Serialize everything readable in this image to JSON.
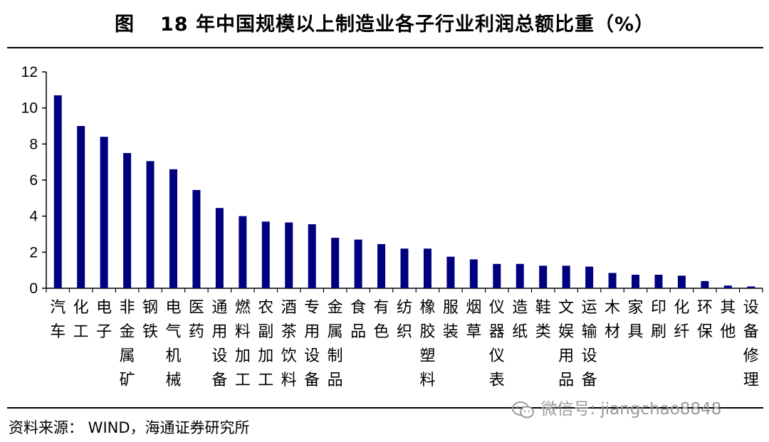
{
  "title": {
    "figure_label": "图",
    "text": "18 年中国规模以上制造业各子行业利润总额比重（%）"
  },
  "source": "资料来源：  WIND，海通证券研究所",
  "watermark": "微信号: jiangchao8848",
  "colors": {
    "bar": "#00007f",
    "axis": "#000000",
    "watermark": "#9a9a9a"
  },
  "chart_data": {
    "type": "bar",
    "title": "18 年中国规模以上制造业各子行业利润总额比重（%）",
    "xlabel": "",
    "ylabel": "",
    "ylim": [
      0,
      12
    ],
    "yticks": [
      "0",
      "2",
      "4",
      "6",
      "8",
      "10",
      "12"
    ],
    "grid": false,
    "legend": "none",
    "categories": [
      "汽车",
      "化工",
      "电子",
      "非金属矿",
      "钢铁",
      "电气机械",
      "医药",
      "通用设备",
      "燃料加工",
      "农副加工",
      "酒茶饮料",
      "专用设备",
      "金属制品",
      "食品",
      "有色",
      "纺织",
      "橡胶塑料",
      "服装",
      "烟草",
      "仪器仪表",
      "造纸",
      "鞋类",
      "文娱用品",
      "运输设备",
      "木材",
      "家具",
      "印刷",
      "化纤",
      "环保",
      "其他",
      "设备修理"
    ],
    "values": [
      10.7,
      9.0,
      8.4,
      7.5,
      7.05,
      6.6,
      5.45,
      4.45,
      4.0,
      3.7,
      3.65,
      3.55,
      2.8,
      2.7,
      2.45,
      2.2,
      2.2,
      1.75,
      1.6,
      1.35,
      1.35,
      1.25,
      1.25,
      1.2,
      0.85,
      0.75,
      0.75,
      0.7,
      0.4,
      0.15,
      0.1
    ]
  }
}
